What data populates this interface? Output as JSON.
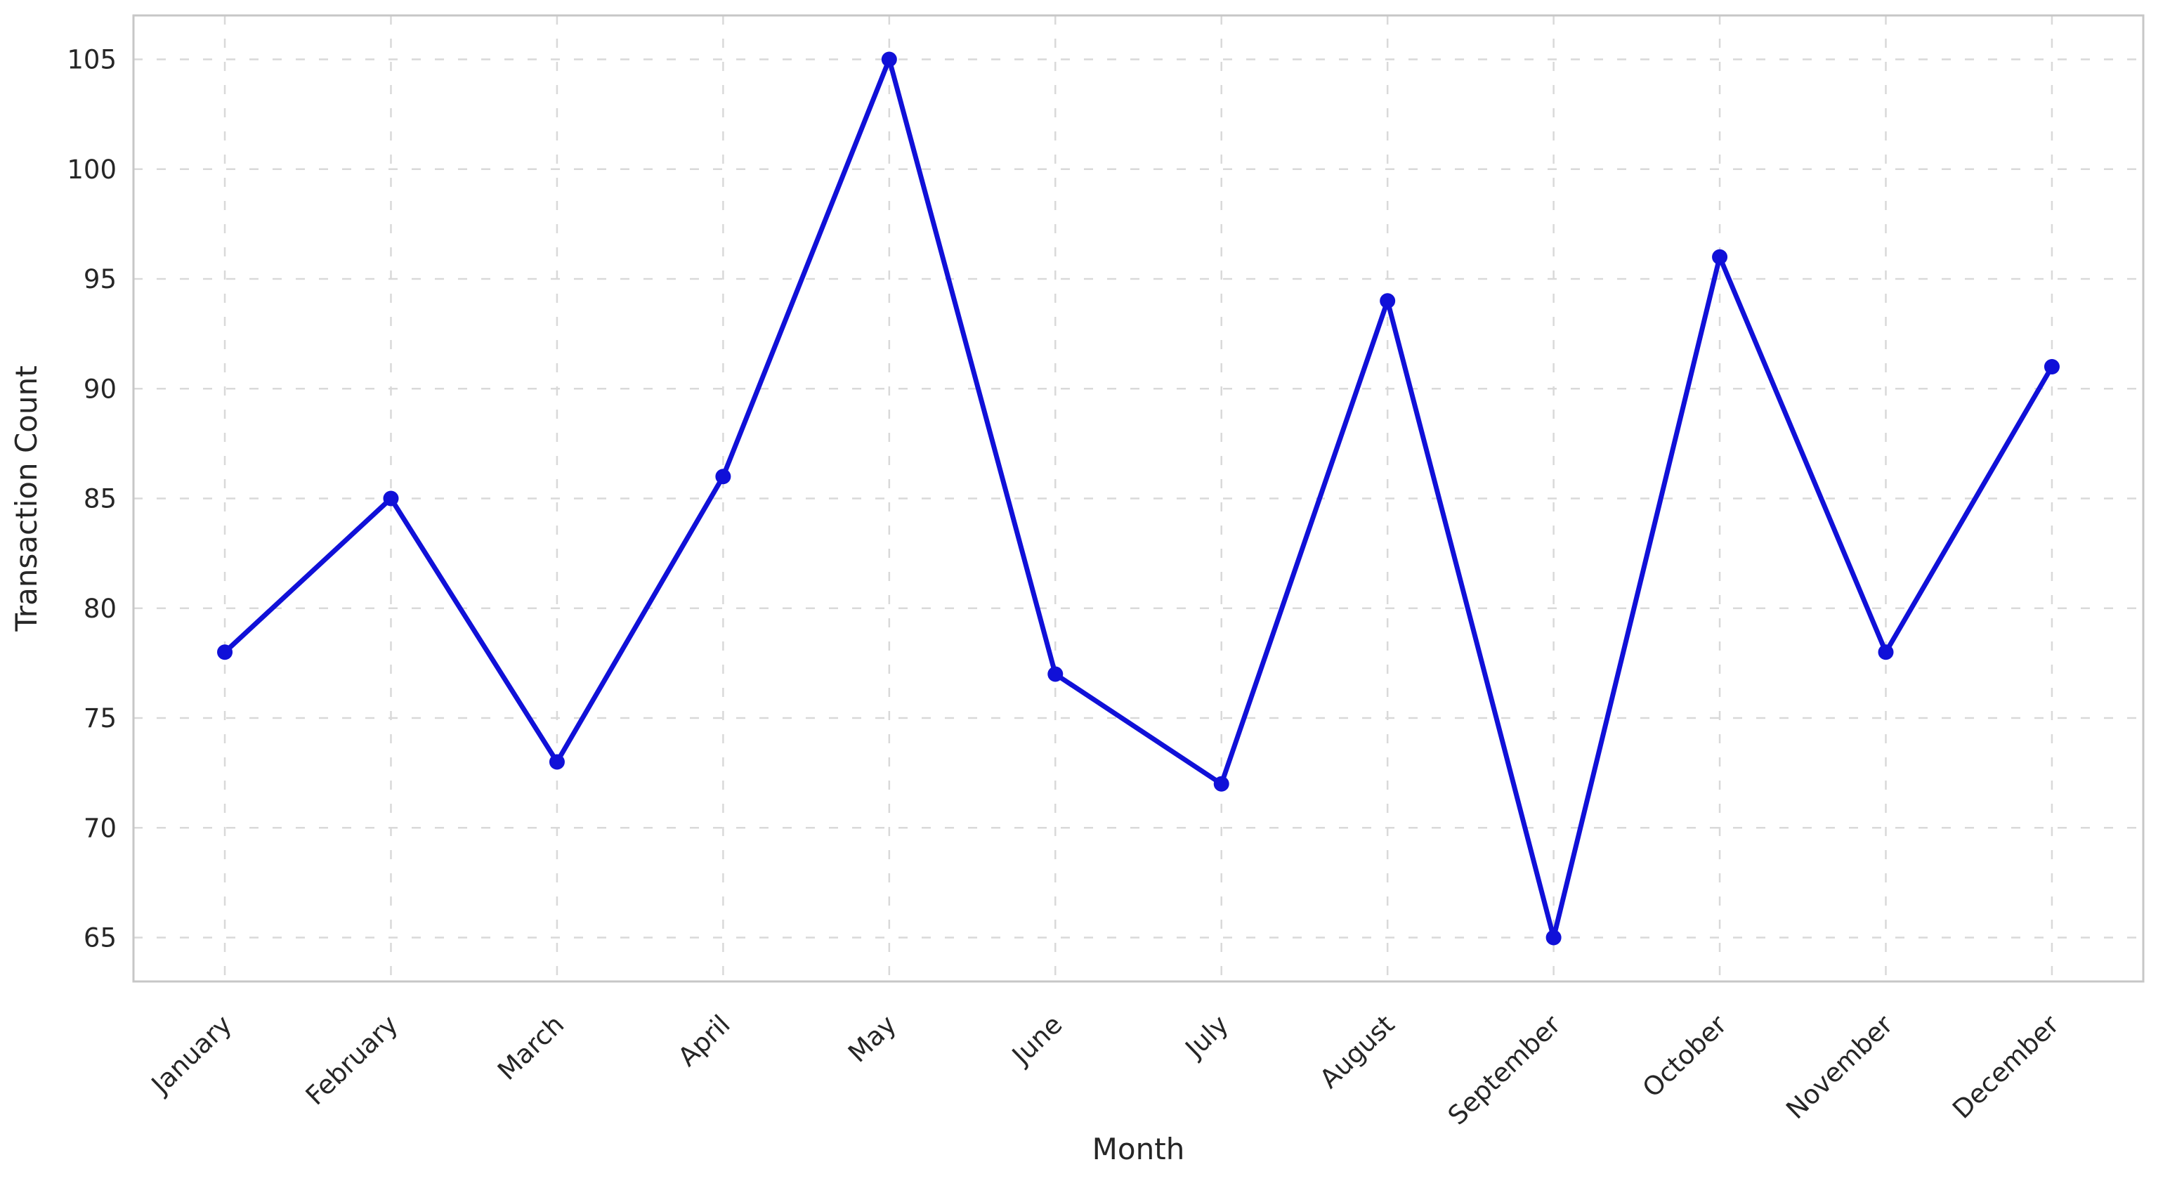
{
  "chart_data": {
    "type": "line",
    "title": "",
    "xlabel": "Month",
    "ylabel": "Transaction Count",
    "categories": [
      "January",
      "February",
      "March",
      "April",
      "May",
      "June",
      "July",
      "August",
      "September",
      "October",
      "November",
      "December"
    ],
    "series": [
      {
        "name": "Transaction Count",
        "values": [
          78,
          85,
          73,
          86,
          105,
          77,
          72,
          94,
          65,
          96,
          78,
          91
        ]
      }
    ],
    "y_ticks": [
      65,
      70,
      75,
      80,
      85,
      90,
      95,
      100,
      105
    ],
    "ylim": [
      63,
      107
    ],
    "grid": "dashed, both axes",
    "legend": "none",
    "marker": "circle",
    "colors": {
      "line": "#1010d8",
      "marker": "#1010d8",
      "grid": "#d9d9d9",
      "spine": "#c7c7c7",
      "text": "#262626"
    }
  }
}
